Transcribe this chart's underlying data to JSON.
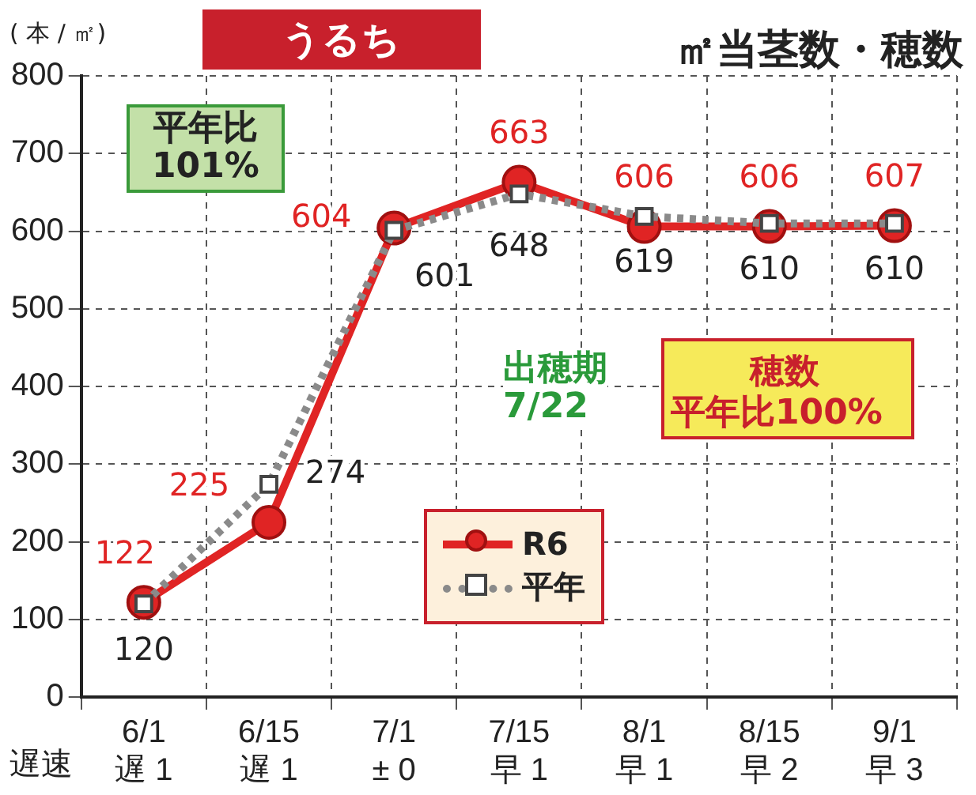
{
  "chart_data": {
    "type": "line",
    "title": "㎡当茎数・穂数",
    "subtitle": "うるち",
    "ylabel": "( 本 / ㎡)",
    "xlabel": "遅速",
    "categories": [
      "6/1\n遅 1",
      "6/15\n遅 1",
      "7/1\n± 0",
      "7/15\n早 1",
      "8/1\n早 1",
      "8/15\n早 2",
      "9/1\n早 3"
    ],
    "series": [
      {
        "name": "R6",
        "color": "#e02424",
        "marker": "circle",
        "line_style": "solid",
        "values": [
          122,
          225,
          604,
          663,
          606,
          606,
          607
        ]
      },
      {
        "name": "平年",
        "color": "#8a8a8a",
        "marker": "square",
        "line_style": "dotted",
        "values": [
          120,
          274,
          601,
          648,
          619,
          610,
          610
        ]
      }
    ],
    "ylim": [
      0,
      800
    ],
    "yticks": [
      0,
      100,
      200,
      300,
      400,
      500,
      600,
      700,
      800
    ],
    "grid": true,
    "legend": "bottom",
    "data_labels": true,
    "annotations": [
      "平年比\n101%",
      "出穂期\n7/22",
      "穂数",
      "平年比100%"
    ]
  }
}
